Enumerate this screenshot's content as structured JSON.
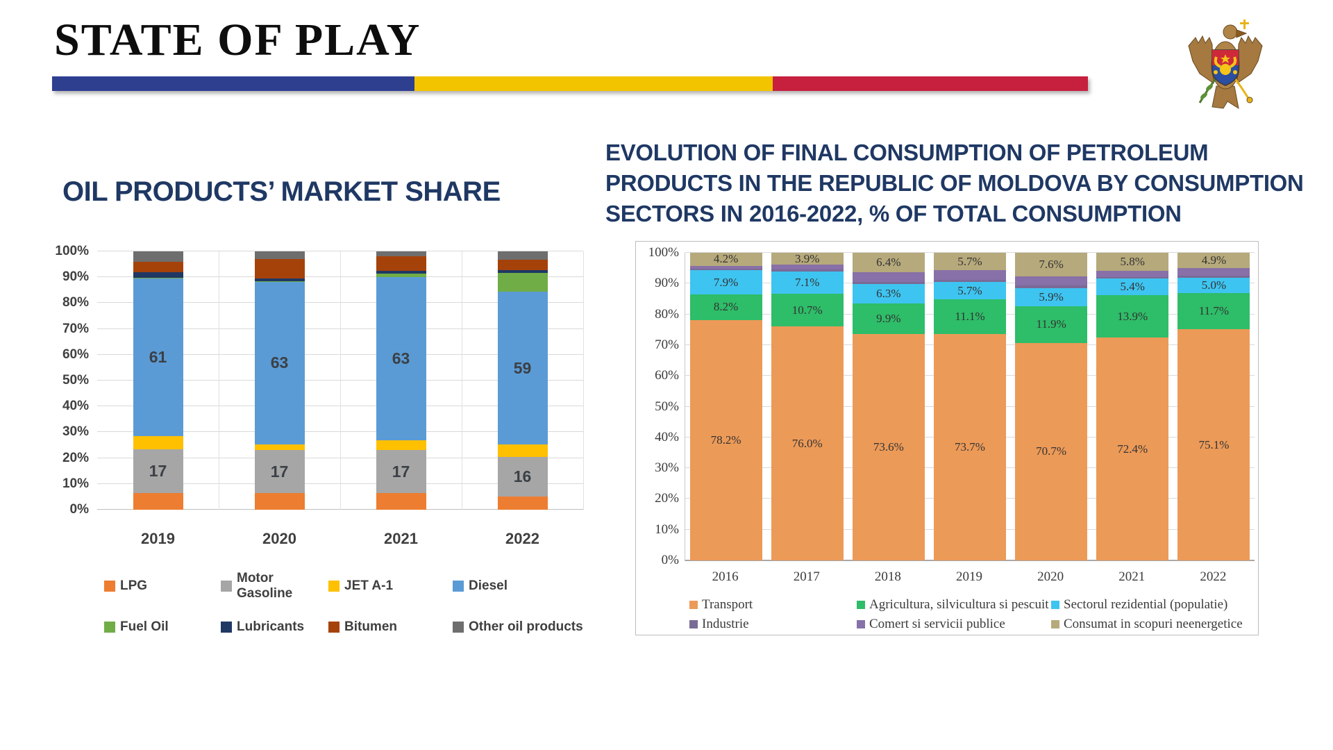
{
  "slide": {
    "title": "STATE OF PLAY",
    "flag_bar": {
      "blue": "#2E3F90",
      "yellow": "#F2C400",
      "red": "#C6203E"
    },
    "coat_of_arms": {
      "name": "moldova-coat-of-arms"
    }
  },
  "chart_data": [
    {
      "type": "bar",
      "stacked": true,
      "title": "OIL PRODUCTS’ MARKET SHARE",
      "categories": [
        "2019",
        "2020",
        "2021",
        "2022"
      ],
      "series": [
        {
          "name": "LPG",
          "color": "#ED7D31",
          "values": [
            6.5,
            6.5,
            6.5,
            5
          ]
        },
        {
          "name": "Motor Gasoline",
          "color": "#A6A6A6",
          "values": [
            17,
            16.5,
            16.5,
            15.5
          ],
          "labels": [
            "17",
            "17",
            "17",
            "16"
          ]
        },
        {
          "name": "JET A-1",
          "color": "#FFC000",
          "values": [
            5,
            2.3,
            4,
            4.8
          ]
        },
        {
          "name": "Diesel",
          "color": "#5B9BD5",
          "values": [
            61,
            63,
            63,
            59
          ],
          "labels": [
            "61",
            "63",
            "63",
            "59"
          ]
        },
        {
          "name": "Fuel Oil",
          "color": "#70AD47",
          "values": [
            0.3,
            0.2,
            1.5,
            7.5
          ]
        },
        {
          "name": "Lubricants",
          "color": "#1F3864",
          "values": [
            2.2,
            1,
            1,
            1
          ]
        },
        {
          "name": "Bitumen",
          "color": "#A5420A",
          "values": [
            4,
            7.5,
            5.5,
            4
          ]
        },
        {
          "name": "Other oil products",
          "color": "#6E6E6E",
          "values": [
            4,
            3,
            2,
            3.2
          ]
        }
      ],
      "ylim": [
        0,
        100
      ],
      "yticks": [
        "0%",
        "10%",
        "20%",
        "30%",
        "40%",
        "50%",
        "60%",
        "70%",
        "80%",
        "90%",
        "100%"
      ],
      "grid": true,
      "legend_position": "bottom"
    },
    {
      "type": "bar",
      "stacked": true,
      "title": "EVOLUTION OF FINAL CONSUMPTION OF PETROLEUM\nPRODUCTS IN THE REPUBLIC OF MOLDOVA BY CONSUMPTION\nSECTORS IN 2016-2022, % OF TOTAL CONSUMPTION",
      "categories": [
        "2016",
        "2017",
        "2018",
        "2019",
        "2020",
        "2021",
        "2022"
      ],
      "series": [
        {
          "name": "Transport",
          "color": "#EC9A58",
          "values": [
            78.2,
            76.0,
            73.6,
            73.7,
            70.7,
            72.4,
            75.1
          ],
          "labels": [
            "78.2%",
            "76.0%",
            "73.6%",
            "73.7%",
            "70.7%",
            "72.4%",
            "75.1%"
          ]
        },
        {
          "name": "Agricultura, silvicultura si pescuit",
          "color": "#2EBD68",
          "values": [
            8.2,
            10.7,
            9.9,
            11.1,
            11.9,
            13.9,
            11.7
          ],
          "labels": [
            "8.2%",
            "10.7%",
            "9.9%",
            "11.1%",
            "11.9%",
            "13.9%",
            "11.7%"
          ]
        },
        {
          "name": "Sectorul rezidential (populatie)",
          "color": "#3EC4F0",
          "values": [
            7.9,
            7.1,
            6.3,
            5.7,
            5.9,
            5.4,
            5.0
          ],
          "labels": [
            "7.9%",
            "7.1%",
            "6.3%",
            "5.7%",
            "5.9%",
            "5.4%",
            "5.0%"
          ]
        },
        {
          "name": "Industrie",
          "color": "#7A6B96",
          "values": [
            0.5,
            0.7,
            0.8,
            0.8,
            1.0,
            0.5,
            0.8
          ]
        },
        {
          "name": "Comert si servicii publice",
          "color": "#8870A8",
          "values": [
            1.0,
            1.6,
            3.0,
            3.0,
            2.9,
            2.0,
            2.5
          ]
        },
        {
          "name": "Consumat in scopuri neenergetice",
          "color": "#B6A97B",
          "values": [
            4.2,
            3.9,
            6.4,
            5.7,
            7.6,
            5.8,
            4.9
          ],
          "labels": [
            "4.2%",
            "3.9%",
            "6.4%",
            "5.7%",
            "7.6%",
            "5.8%",
            "4.9%"
          ]
        }
      ],
      "ylim": [
        0,
        100
      ],
      "yticks": [
        "0%",
        "10%",
        "20%",
        "30%",
        "40%",
        "50%",
        "60%",
        "70%",
        "80%",
        "90%",
        "100%"
      ],
      "grid": true,
      "legend_position": "bottom"
    }
  ]
}
